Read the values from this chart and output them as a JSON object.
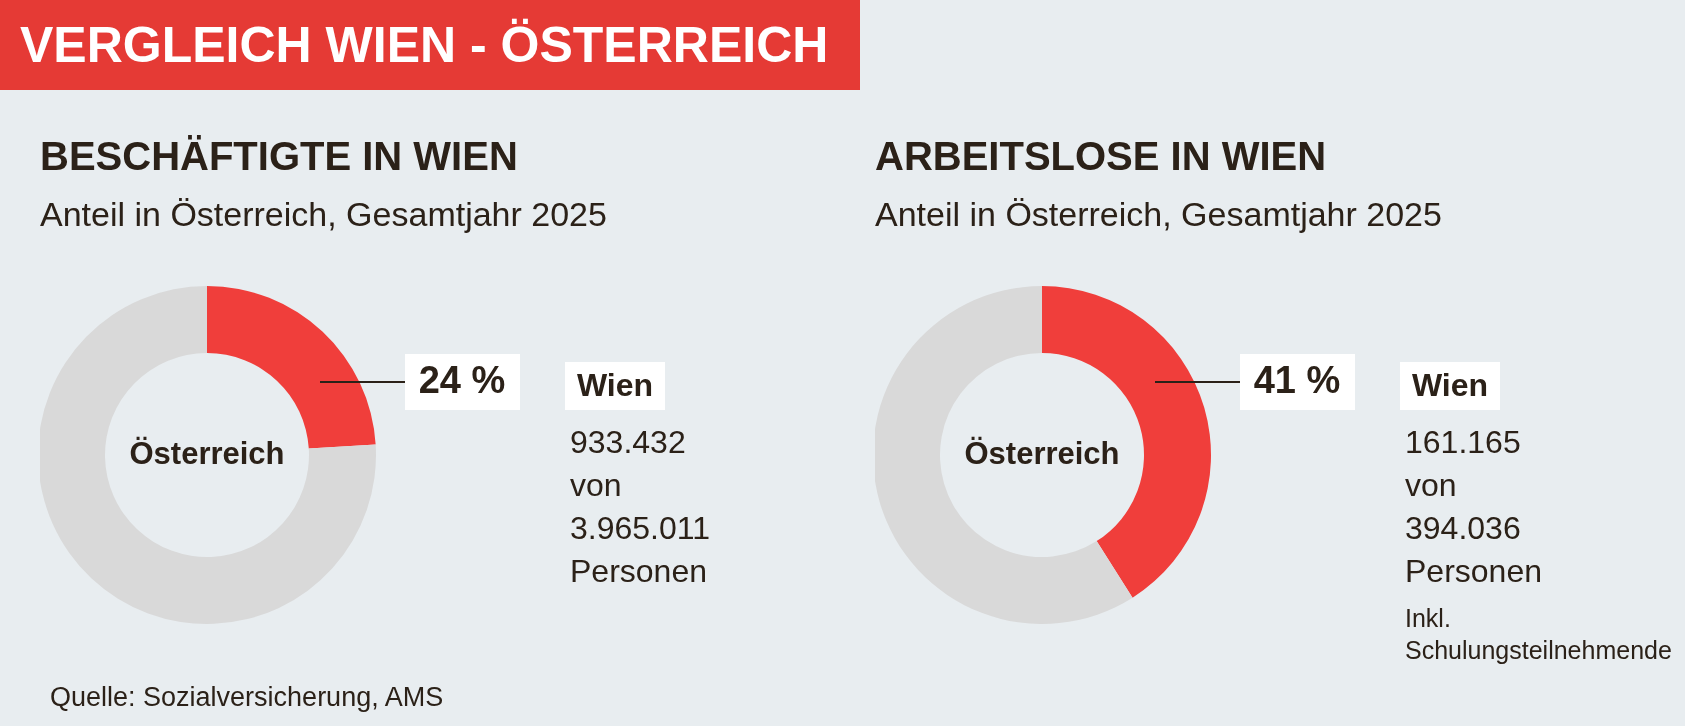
{
  "chart_data": [
    {
      "type": "other",
      "title": "VERGLEICH WIEN - ÖSTERREICH",
      "annotations": [
        "Quelle: Sozialversicherung, AMS"
      ]
    },
    {
      "type": "donut",
      "title": "BESCHÄFTIGTE IN WIEN",
      "subtitle": "Anteil in Österreich, Gesamtjahr 2025",
      "categories": [
        null,
        "Österreich"
      ],
      "values": [
        24,
        76
      ],
      "colors": [
        "#f03e3b",
        "#d9d9d9"
      ],
      "value_labels": [
        "24 %",
        null
      ],
      "annotations": [
        "Wien",
        "933.432 von 3.965.011 Personen"
      ]
    },
    {
      "type": "donut",
      "title": "ARBEITSLOSE IN WIEN",
      "subtitle": "Anteil in Österreich, Gesamtjahr 2025",
      "categories": [
        null,
        "Österreich"
      ],
      "values": [
        41,
        59
      ],
      "colors": [
        "#f03e3b",
        "#d9d9d9"
      ],
      "value_labels": [
        "41 %",
        null
      ],
      "annotations": [
        "Wien",
        "161.165 von 394.036 Personen",
        "Inkl. Schulungsteilnehmende"
      ]
    }
  ]
}
